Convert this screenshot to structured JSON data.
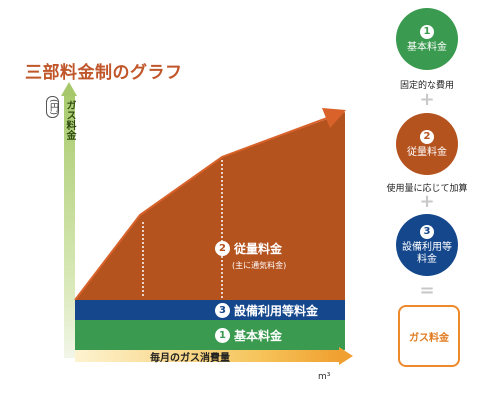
{
  "title": "三部料金制のグラフ",
  "axes": {
    "y_label": "ガス料金",
    "y_unit": "(円)",
    "x_label": "毎月のガス消費量",
    "x_unit": "m³"
  },
  "bands": {
    "basic": {
      "num": "1",
      "label": "基本料金"
    },
    "facility": {
      "num": "3",
      "label": "設備利用等料金"
    },
    "usage": {
      "num": "2",
      "label": "従量料金",
      "note": "(主に通気料金)"
    }
  },
  "side": {
    "c1": {
      "num": "1",
      "label": "基本料金",
      "caption": "固定的な費用"
    },
    "plus1": "+",
    "c2": {
      "num": "2",
      "label": "従量料金",
      "caption": "使用量に応じて加算"
    },
    "plus2": "+",
    "c3": {
      "num": "3",
      "label": "設備利用等料金"
    },
    "equals": "=",
    "total": "ガス料金"
  },
  "colors": {
    "basic_band": "#3a9a4f",
    "facility_band": "#14478c",
    "usage_area": "#b5531f",
    "title": "#c0562a",
    "total_border": "#ee8a2a"
  }
}
